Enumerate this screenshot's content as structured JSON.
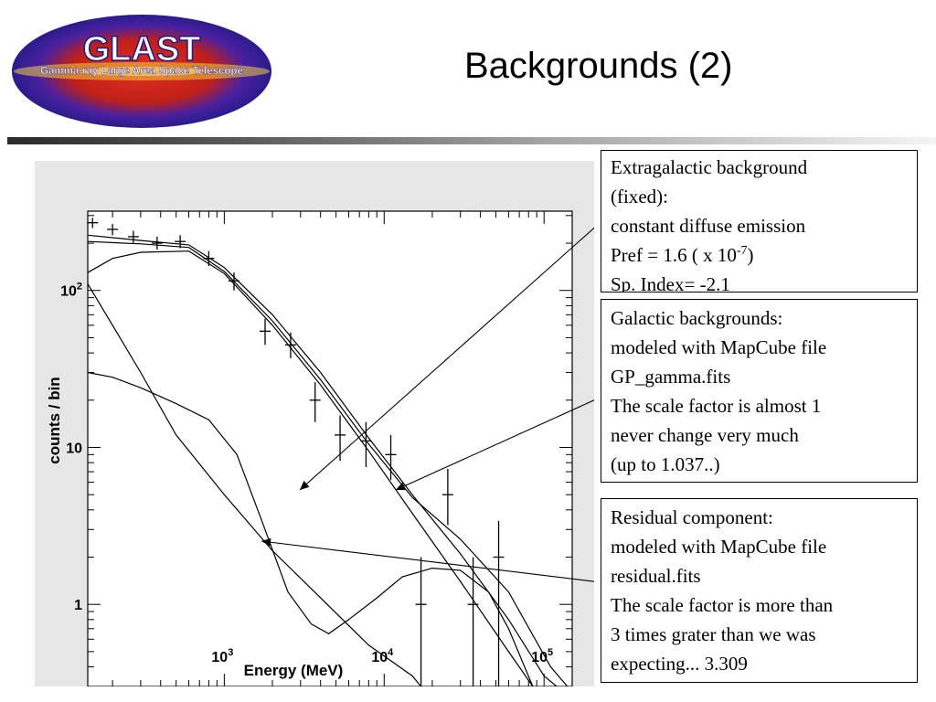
{
  "slide": {
    "title": "Backgrounds (2)",
    "logo": {
      "text": "GLAST",
      "subtitle": "Gamma-ray Large Area Space Telescope"
    }
  },
  "chart_data": {
    "type": "line",
    "xlabel": "Energy (MeV)",
    "ylabel": "counts / bin",
    "xscale": "log",
    "yscale": "log",
    "xlim": [
      140,
      150000
    ],
    "ylim": [
      0.3,
      320
    ],
    "xticks": [
      {
        "base": "10",
        "exp": "3",
        "value": 1000
      },
      {
        "base": "10",
        "exp": "4",
        "value": 10000
      },
      {
        "base": "10",
        "exp": "5",
        "value": 100000
      }
    ],
    "yticks": [
      {
        "base": "10",
        "exp": "2",
        "value": 100
      },
      {
        "label": "10",
        "value": 10
      },
      {
        "label": "1",
        "value": 1
      }
    ],
    "points": [
      {
        "x": 150,
        "y": 270,
        "ylo": 250,
        "yhi": 290
      },
      {
        "x": 200,
        "y": 245,
        "ylo": 225,
        "yhi": 265
      },
      {
        "x": 270,
        "y": 220,
        "ylo": 200,
        "yhi": 240
      },
      {
        "x": 380,
        "y": 200,
        "ylo": 182,
        "yhi": 220
      },
      {
        "x": 530,
        "y": 205,
        "ylo": 186,
        "yhi": 225
      },
      {
        "x": 800,
        "y": 160,
        "ylo": 143,
        "yhi": 178
      },
      {
        "x": 1150,
        "y": 115,
        "ylo": 100,
        "yhi": 130
      },
      {
        "x": 1800,
        "y": 55,
        "ylo": 45,
        "yhi": 66
      },
      {
        "x": 2600,
        "y": 45,
        "ylo": 37,
        "yhi": 54
      },
      {
        "x": 3700,
        "y": 20,
        "ylo": 14.5,
        "yhi": 26
      },
      {
        "x": 5300,
        "y": 12,
        "ylo": 8.2,
        "yhi": 16
      },
      {
        "x": 7700,
        "y": 11,
        "ylo": 7.5,
        "yhi": 14.5
      },
      {
        "x": 11000,
        "y": 9,
        "ylo": 6.2,
        "yhi": 12
      },
      {
        "x": 17000,
        "y": 1,
        "ylo": 0.3,
        "yhi": 2
      },
      {
        "x": 25000,
        "y": 5,
        "ylo": 3.2,
        "yhi": 7.3
      },
      {
        "x": 36000,
        "y": 1,
        "ylo": 0.3,
        "yhi": 2
      },
      {
        "x": 52000,
        "y": 2,
        "ylo": 0.3,
        "yhi": 3.4
      }
    ],
    "series": [
      {
        "values": [
          [
            140,
            225
          ],
          [
            300,
            208
          ],
          [
            600,
            195
          ],
          [
            1000,
            140
          ],
          [
            2000,
            70
          ],
          [
            4000,
            30
          ],
          [
            8000,
            11.5
          ],
          [
            15000,
            5
          ],
          [
            30000,
            2.1
          ],
          [
            60000,
            0.8
          ],
          [
            100000,
            0.35
          ],
          [
            120000,
            0.3
          ]
        ]
      },
      {
        "values": [
          [
            140,
            205
          ],
          [
            300,
            198
          ],
          [
            600,
            188
          ],
          [
            1000,
            132
          ],
          [
            2000,
            64
          ],
          [
            4000,
            27
          ],
          [
            8000,
            10.5
          ],
          [
            15000,
            4.8
          ],
          [
            30000,
            2.6
          ],
          [
            60000,
            1.2
          ],
          [
            110000,
            0.4
          ],
          [
            140000,
            0.3
          ]
        ]
      },
      {
        "values": [
          [
            140,
            130
          ],
          [
            200,
            160
          ],
          [
            300,
            175
          ],
          [
            600,
            178
          ],
          [
            1000,
            128
          ],
          [
            2000,
            60
          ],
          [
            4000,
            25
          ],
          [
            8000,
            9.5
          ],
          [
            15000,
            3.8
          ],
          [
            30000,
            1.4
          ],
          [
            60000,
            0.5
          ],
          [
            85000,
            0.3
          ]
        ]
      },
      {
        "values": [
          [
            140,
            110
          ],
          [
            200,
            60
          ],
          [
            300,
            30
          ],
          [
            500,
            12
          ],
          [
            1000,
            5
          ],
          [
            2000,
            2.2
          ],
          [
            4000,
            1.1
          ],
          [
            8000,
            0.55
          ],
          [
            15000,
            0.35
          ],
          [
            17000,
            0.3
          ]
        ]
      },
      {
        "values": [
          [
            140,
            30
          ],
          [
            200,
            28
          ],
          [
            300,
            24
          ],
          [
            500,
            19
          ],
          [
            800,
            15
          ],
          [
            1200,
            9
          ],
          [
            1700,
            3.5
          ],
          [
            2500,
            1.2
          ],
          [
            3500,
            0.75
          ],
          [
            4500,
            0.65
          ],
          [
            6000,
            0.8
          ],
          [
            9000,
            1.1
          ],
          [
            13000,
            1.5
          ],
          [
            20000,
            1.7
          ],
          [
            30000,
            1.65
          ],
          [
            45000,
            1.2
          ],
          [
            60000,
            0.7
          ],
          [
            85000,
            0.3
          ]
        ]
      }
    ]
  },
  "boxes": {
    "extragalactic": {
      "line1": "Extragalactic background",
      "line2": "(fixed):",
      "line3": "constant diffuse emission",
      "line4_pre": "Pref = 1.6  ( x 10",
      "line4_sup": "-7",
      "line4_post": ")",
      "line5": "Sp. Index= -2.1"
    },
    "galactic": {
      "line1": "Galactic backgrounds:",
      "line2": "modeled with MapCube file",
      "line3": "GP_gamma.fits",
      "line4": "The scale factor is almost 1",
      "line5": "never change very much",
      "line6": "(up to 1.037..)"
    },
    "residual": {
      "line1": "Residual component:",
      "line2": "modeled with MapCube file",
      "line3": "residual.fits",
      "line4": "The scale factor is more than",
      "line5": "3 times grater than we was",
      "line6": "expecting... 3.309"
    }
  },
  "colors": {
    "logo_red": "#c8102e",
    "logo_blue": "#1c1c8c",
    "logo_text": "#ffffff",
    "plot_bg": "#e6e6e6",
    "frame_bg": "#ffffff",
    "curve": "#000000"
  }
}
